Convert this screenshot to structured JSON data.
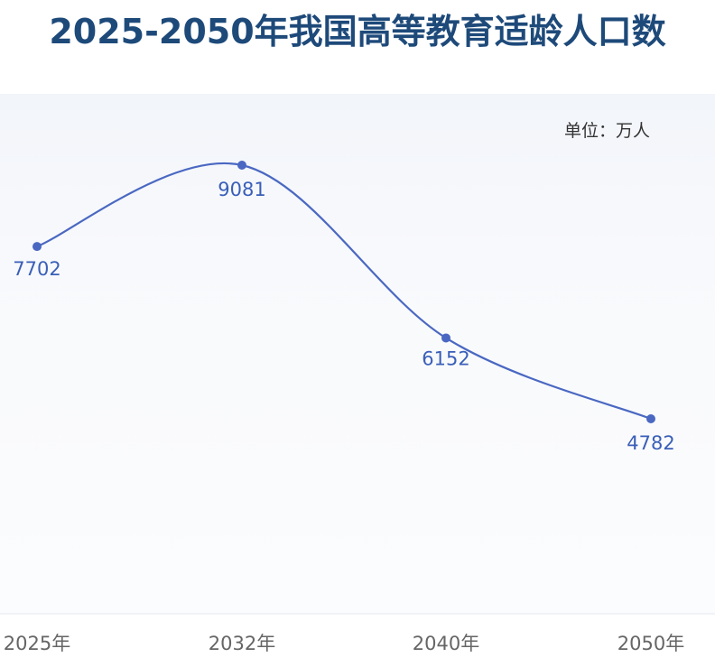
{
  "title": "2025-2050年我国高等教育适龄人口数",
  "unit_label": "单位：万人",
  "chart_data": {
    "type": "line",
    "title": "2025-2050年我国高等教育适龄人口数",
    "categories": [
      "2025年",
      "2032年",
      "2040年",
      "2050年"
    ],
    "series": [
      {
        "values": [
          7702,
          9081,
          6152,
          4782
        ]
      }
    ],
    "ylabel": "单位：万人",
    "line_color": "#4a68c2",
    "label_color": "#3a5fb8",
    "grid": false,
    "smooth": true
  }
}
